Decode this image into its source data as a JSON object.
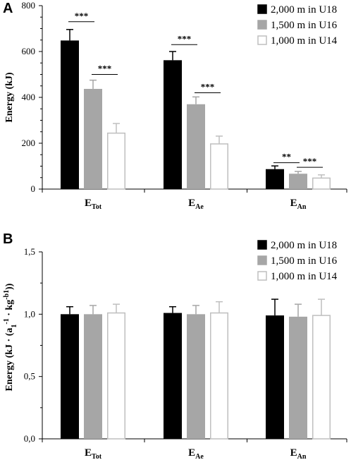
{
  "chart_data": [
    {
      "panel": "A",
      "type": "bar",
      "ylabel": "Energy (kJ)",
      "ylim": [
        0,
        800
      ],
      "yticks": [
        "0",
        "200",
        "400",
        "600",
        "800"
      ],
      "categories": [
        {
          "main": "E",
          "sub": "Tot"
        },
        {
          "main": "E",
          "sub": "Ae"
        },
        {
          "main": "E",
          "sub": "An"
        }
      ],
      "series": [
        {
          "name": "2,000 m in U18",
          "fill": "#000000",
          "stroke": "#000000",
          "errcolor": "#000000",
          "values": [
            648,
            562,
            87
          ],
          "errors": [
            48,
            38,
            14
          ]
        },
        {
          "name": "1,500 m in U16",
          "fill": "#a6a6a6",
          "stroke": "#a6a6a6",
          "errcolor": "#a6a6a6",
          "values": [
            437,
            370,
            67
          ],
          "errors": [
            38,
            32,
            10
          ]
        },
        {
          "name": "1,000 m in U14",
          "fill": "#ffffff",
          "stroke": "#bfbfbf",
          "errcolor": "#bfbfbf",
          "values": [
            244,
            197,
            48
          ],
          "errors": [
            42,
            34,
            14
          ]
        }
      ],
      "significance": [
        {
          "category": 0,
          "from": 0,
          "to": 1,
          "label": "***",
          "level": 730
        },
        {
          "category": 0,
          "from": 1,
          "to": 2,
          "label": "***",
          "level": 500
        },
        {
          "category": 1,
          "from": 0,
          "to": 1,
          "label": "***",
          "level": 630
        },
        {
          "category": 1,
          "from": 1,
          "to": 2,
          "label": "***",
          "level": 420
        },
        {
          "category": 2,
          "from": 0,
          "to": 1,
          "label": "**",
          "level": 115
        },
        {
          "category": 2,
          "from": 1,
          "to": 2,
          "label": "***",
          "level": 95
        }
      ],
      "legend_position": "top-right",
      "grid": false
    },
    {
      "panel": "B",
      "type": "bar",
      "ylabel": "Energy (kJ · (a₁⁻¹ · kg^-b₁))",
      "ylim": [
        0,
        1.5
      ],
      "yticks": [
        "0,0",
        "0,5",
        "1,0",
        "1,5"
      ],
      "categories": [
        {
          "main": "E",
          "sub": "Tot"
        },
        {
          "main": "E",
          "sub": "Ae"
        },
        {
          "main": "E",
          "sub": "An"
        }
      ],
      "series": [
        {
          "name": "2,000 m in U18",
          "fill": "#000000",
          "stroke": "#000000",
          "errcolor": "#000000",
          "values": [
            1.0,
            1.01,
            0.99
          ],
          "errors": [
            0.06,
            0.05,
            0.13
          ]
        },
        {
          "name": "1,500 m in U16",
          "fill": "#a6a6a6",
          "stroke": "#a6a6a6",
          "errcolor": "#a6a6a6",
          "values": [
            1.0,
            1.0,
            0.98
          ],
          "errors": [
            0.07,
            0.07,
            0.1
          ]
        },
        {
          "name": "1,000 m in U14",
          "fill": "#ffffff",
          "stroke": "#bfbfbf",
          "errcolor": "#bfbfbf",
          "values": [
            1.01,
            1.01,
            0.99
          ],
          "errors": [
            0.07,
            0.09,
            0.13
          ]
        }
      ],
      "legend_position": "top-right",
      "grid": false
    }
  ]
}
